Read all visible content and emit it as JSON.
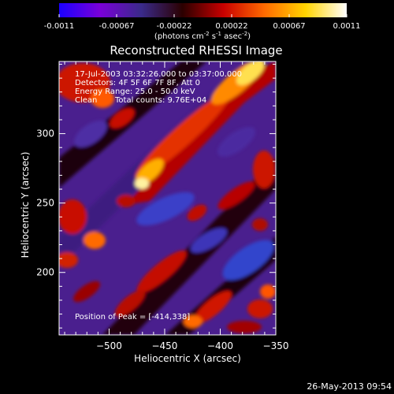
{
  "colorbar": {
    "ticks": [
      "-0.0011",
      "-0.00067",
      "-0.00022",
      "0.00022",
      "0.00067",
      "0.0011"
    ],
    "unit_main": "(photons cm",
    "unit_exp1": "-2",
    "unit_mid": " s",
    "unit_exp2": "-1",
    "unit_tail": " asec",
    "unit_exp3": "-2",
    "unit_close": ")",
    "colors": [
      "#1b00ff",
      "#7a00d8",
      "#3a2a8a",
      "#2b0000",
      "#c80000",
      "#ff6a00",
      "#ffd400",
      "#ffffff"
    ]
  },
  "annotations": {
    "time_line": "17-Jul-2003 03:32:26.000 to 03:37:00.000",
    "detectors_line": "Detectors: 4F 5F 6F 7F 8F, Att 0",
    "energy_line": "Energy Range: 25.0 - 50.0 keV",
    "clean_label": "Clean",
    "counts_line": "Total counts: 9.76E+04",
    "peak_line": "Position of Peak = [-414,338]"
  },
  "footer_timestamp": "26-May-2013 09:54",
  "chart_data": {
    "type": "heatmap",
    "title": "Reconstructed RHESSI Image",
    "xlabel": "Heliocentric X (arcsec)",
    "ylabel": "Heliocentric Y (arcsec)",
    "xlim": [
      -545,
      -350
    ],
    "ylim": [
      155,
      352
    ],
    "x_ticks": [
      -500,
      -450,
      -400,
      -350
    ],
    "y_ticks": [
      200,
      250,
      300
    ],
    "x_tick_labels": [
      "−500",
      "−450",
      "−400",
      "−350"
    ],
    "y_tick_labels": [
      "200",
      "250",
      "300"
    ],
    "colorbar_range": [
      -0.0011,
      0.0011
    ],
    "grid": false,
    "peak_position": [
      -414,
      338
    ]
  }
}
